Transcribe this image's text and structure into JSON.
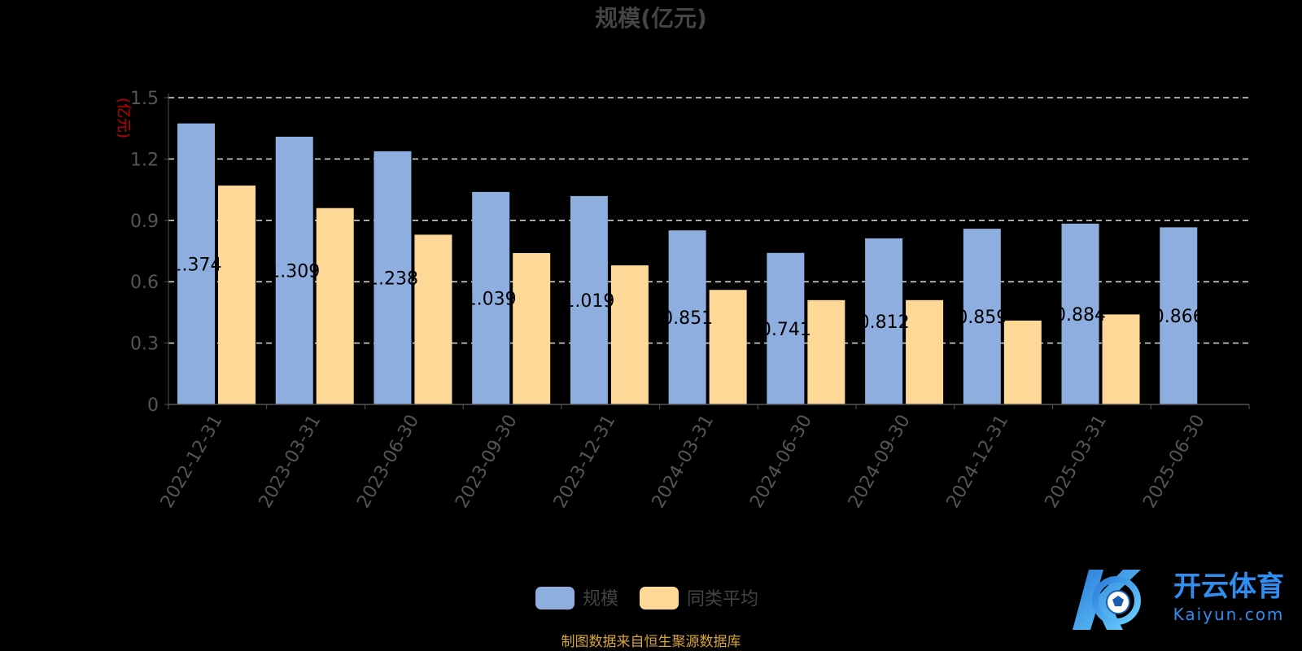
{
  "chart_data": {
    "type": "bar",
    "title": "规模(亿元)",
    "ylabel": "(亿元)",
    "ylim": [
      0,
      1.5
    ],
    "yticks": [
      "0",
      "0.3",
      "0.6",
      "0.9",
      "1.2",
      "1.5"
    ],
    "grid": true,
    "legend_position": "bottom-center",
    "categories": [
      "2022-12-31",
      "2023-03-31",
      "2023-06-30",
      "2023-09-30",
      "2023-12-31",
      "2024-03-31",
      "2024-06-30",
      "2024-09-30",
      "2024-12-31",
      "2025-03-31",
      "2025-06-30"
    ],
    "series": [
      {
        "name": "规模",
        "color": "#8eaee0",
        "values": [
          1.374,
          1.309,
          1.238,
          1.039,
          1.019,
          0.851,
          0.741,
          0.812,
          0.859,
          0.884,
          0.866
        ],
        "labels": [
          "1.374",
          "1.309",
          "1.238",
          "1.039",
          "1.019",
          "0.851",
          "0.741",
          "0.812",
          "0.859",
          "0.884",
          "0.866"
        ]
      },
      {
        "name": "同类平均",
        "color": "#fdd896",
        "values": [
          1.07,
          0.96,
          0.83,
          0.74,
          0.68,
          0.56,
          0.51,
          0.51,
          0.41,
          0.44,
          null
        ]
      }
    ]
  },
  "source_note": "制图数据来自恒生聚源数据库",
  "watermark": {
    "brand": "开云体育",
    "domain": "Kaiyun.com"
  }
}
